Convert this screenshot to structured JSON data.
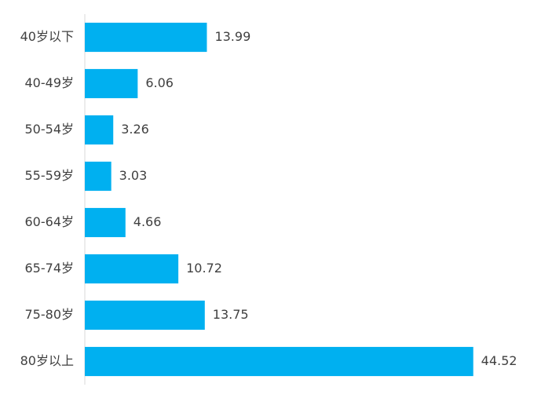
{
  "chart_data": {
    "type": "bar",
    "orientation": "horizontal",
    "categories": [
      "40岁以下",
      "40-49岁",
      "50-54岁",
      "55-59岁",
      "60-64岁",
      "65-74岁",
      "75-80岁",
      "80岁以上"
    ],
    "values": [
      13.99,
      6.06,
      3.26,
      3.03,
      4.66,
      10.72,
      13.75,
      44.52
    ],
    "color": "#00b0f0",
    "xlim": [
      0,
      45
    ]
  }
}
